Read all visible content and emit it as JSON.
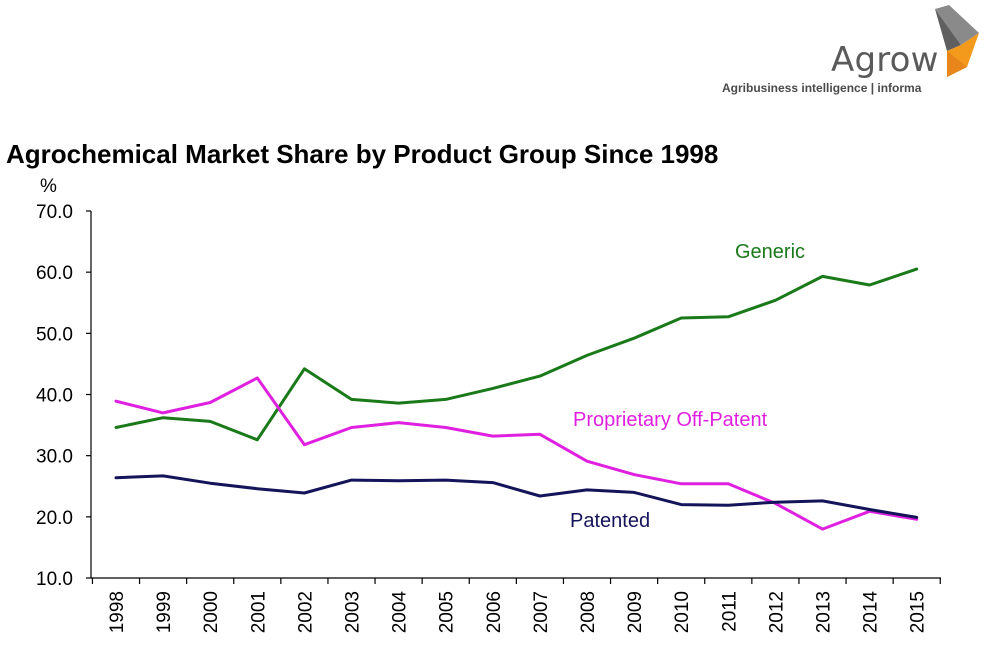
{
  "brand": {
    "name": "Agrow",
    "tagline": "Agribusiness intelligence | informa",
    "colors": {
      "orange": "#f39a1d",
      "gray": "#6b6b6b",
      "dark_gray": "#3f3f3f"
    }
  },
  "chart_data": {
    "type": "line",
    "title": "Agrochemical Market Share by Product Group Since 1998",
    "ylabel": "%",
    "xlabel": "",
    "ylim": [
      10,
      70
    ],
    "yticks": [
      "10.0",
      "20.0",
      "30.0",
      "40.0",
      "50.0",
      "60.0",
      "70.0"
    ],
    "ytick_values": [
      10,
      20,
      30,
      40,
      50,
      60,
      70
    ],
    "categories": [
      "1998",
      "1999",
      "2000",
      "2001",
      "2002",
      "2003",
      "2004",
      "2005",
      "2006",
      "2007",
      "2008",
      "2009",
      "2010",
      "2011",
      "2012",
      "2013",
      "2014",
      "2015"
    ],
    "grid": false,
    "legend": "inline labels",
    "series": [
      {
        "name": "Generic",
        "color": "#1a7a1a",
        "values": [
          34.6,
          36.2,
          35.6,
          32.6,
          44.2,
          39.2,
          38.6,
          39.2,
          41.0,
          43.0,
          46.4,
          49.2,
          52.5,
          52.7,
          55.4,
          59.3,
          57.9,
          60.5
        ]
      },
      {
        "name": "Proprietary Off-Patent",
        "color": "#e020e0",
        "values": [
          38.9,
          37.0,
          38.7,
          42.7,
          31.8,
          34.6,
          35.4,
          34.6,
          33.2,
          33.5,
          29.1,
          26.9,
          25.4,
          25.4,
          22.2,
          18.0,
          20.9,
          19.6
        ]
      },
      {
        "name": "Patented",
        "color": "#14145a",
        "values": [
          26.4,
          26.7,
          25.5,
          24.6,
          23.9,
          26.0,
          25.9,
          26.0,
          25.6,
          23.4,
          24.4,
          24.0,
          22.0,
          21.9,
          22.4,
          22.6,
          21.2,
          19.9
        ]
      }
    ],
    "annotations": [
      {
        "series": "Generic",
        "text": "Generic",
        "color": "#1a7a1a"
      },
      {
        "series": "Proprietary Off-Patent",
        "text": "Proprietary Off-Patent",
        "color": "#e020e0"
      },
      {
        "series": "Patented",
        "text": "Patented",
        "color": "#14145a"
      }
    ]
  }
}
